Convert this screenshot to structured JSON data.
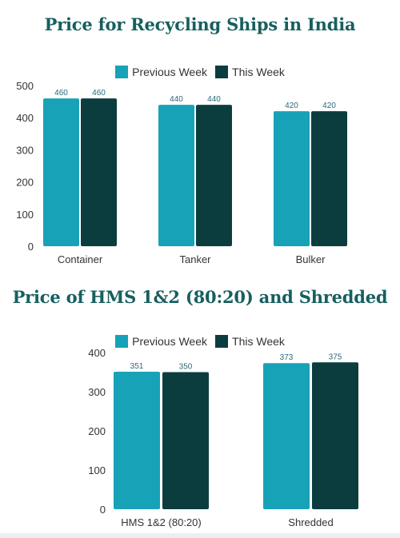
{
  "colors": {
    "previous": "#17a2b8",
    "current": "#0b3d3f",
    "title": "#175f5f"
  },
  "chart_data": [
    {
      "type": "bar",
      "title": "Price for Recycling Ships in India",
      "categories": [
        "Container",
        "Tanker",
        "Bulker"
      ],
      "series": [
        {
          "name": "Previous Week",
          "values": [
            460,
            440,
            420
          ]
        },
        {
          "name": "This Week",
          "values": [
            460,
            440,
            420
          ]
        }
      ],
      "yticks": [
        "0",
        "100",
        "200",
        "300",
        "400",
        "500"
      ],
      "ylim": [
        0,
        500
      ],
      "grid": false,
      "legend": "top-center"
    },
    {
      "type": "bar",
      "title": "Price of HMS 1&2 (80:20) and Shredded",
      "categories": [
        "HMS 1&2 (80:20)",
        "Shredded"
      ],
      "series": [
        {
          "name": "Previous Week",
          "values": [
            351,
            373
          ]
        },
        {
          "name": "This Week",
          "values": [
            350,
            375
          ]
        }
      ],
      "yticks": [
        "0",
        "100",
        "200",
        "300",
        "400"
      ],
      "ylim": [
        0,
        400
      ],
      "grid": false,
      "legend": "top-center"
    }
  ]
}
